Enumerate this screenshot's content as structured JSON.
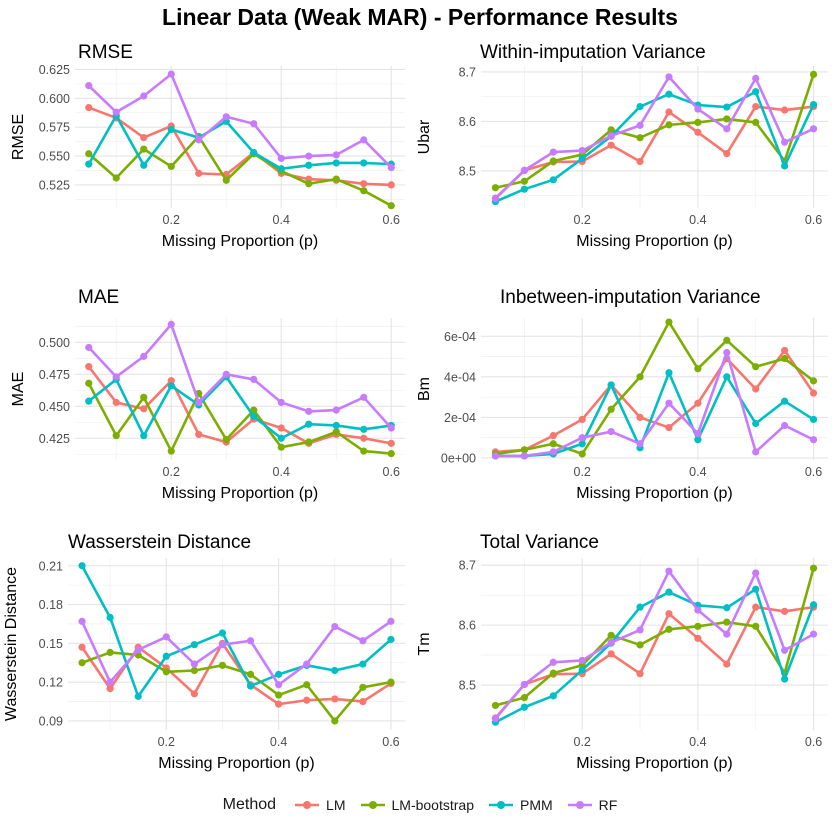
{
  "title": "Linear Data (Weak MAR) - Performance Results",
  "legend": {
    "title": "Method",
    "items": [
      {
        "label": "LM",
        "color": "#F8766D"
      },
      {
        "label": "LM-bootstrap",
        "color": "#7CAE00"
      },
      {
        "label": "PMM",
        "color": "#00BFC4"
      },
      {
        "label": "RF",
        "color": "#C77CFF"
      }
    ]
  },
  "chart_data": [
    {
      "type": "line",
      "title": "RMSE",
      "xlabel": "Missing Proportion (p)",
      "ylabel": "RMSE",
      "xlim": [
        0.025,
        0.625
      ],
      "ylim": [
        0.505,
        0.628
      ],
      "x_ticks": [
        0.2,
        0.4,
        0.6
      ],
      "x_tick_labels": [
        "0.2",
        "0.4",
        "0.6"
      ],
      "y_ticks": [
        0.525,
        0.55,
        0.575,
        0.6,
        0.625
      ],
      "y_tick_labels": [
        "0.525",
        "0.550",
        "0.575",
        "0.600",
        "0.625"
      ],
      "x": [
        0.05,
        0.1,
        0.15,
        0.2,
        0.25,
        0.3,
        0.35,
        0.4,
        0.45,
        0.5,
        0.55,
        0.6
      ],
      "series": [
        {
          "name": "LM",
          "values": [
            0.592,
            0.583,
            0.566,
            0.576,
            0.535,
            0.534,
            0.553,
            0.535,
            0.53,
            0.529,
            0.526,
            0.525
          ]
        },
        {
          "name": "LM-bootstrap",
          "values": [
            0.552,
            0.531,
            0.556,
            0.541,
            0.567,
            0.529,
            0.552,
            0.537,
            0.526,
            0.53,
            0.52,
            0.507
          ]
        },
        {
          "name": "PMM",
          "values": [
            0.543,
            0.585,
            0.542,
            0.573,
            0.566,
            0.58,
            0.553,
            0.539,
            0.542,
            0.544,
            0.544,
            0.543
          ]
        },
        {
          "name": "RF",
          "values": [
            0.611,
            0.588,
            0.602,
            0.621,
            0.564,
            0.584,
            0.578,
            0.548,
            0.55,
            0.551,
            0.564,
            0.54
          ]
        }
      ]
    },
    {
      "type": "line",
      "title": "Within-imputation Variance",
      "xlabel": "Missing Proportion (p)",
      "ylabel": "Ubar",
      "xlim": [
        0.025,
        0.625
      ],
      "ylim": [
        8.425,
        8.712
      ],
      "x_ticks": [
        0.2,
        0.4,
        0.6
      ],
      "x_tick_labels": [
        "0.2",
        "0.4",
        "0.6"
      ],
      "y_ticks": [
        8.5,
        8.6,
        8.7
      ],
      "y_tick_labels": [
        "8.5",
        "8.6",
        "8.7"
      ],
      "x": [
        0.05,
        0.1,
        0.15,
        0.2,
        0.25,
        0.3,
        0.35,
        0.4,
        0.45,
        0.5,
        0.55,
        0.6
      ],
      "series": [
        {
          "name": "LM",
          "values": [
            8.445,
            8.501,
            8.518,
            8.519,
            8.552,
            8.519,
            8.619,
            8.578,
            8.535,
            8.63,
            8.623,
            8.63
          ]
        },
        {
          "name": "LM-bootstrap",
          "values": [
            8.466,
            8.479,
            8.52,
            8.533,
            8.583,
            8.567,
            8.593,
            8.598,
            8.605,
            8.598,
            8.52,
            8.695
          ]
        },
        {
          "name": "PMM",
          "values": [
            8.438,
            8.463,
            8.482,
            8.525,
            8.57,
            8.63,
            8.655,
            8.633,
            8.629,
            8.66,
            8.51,
            8.634
          ]
        },
        {
          "name": "RF",
          "values": [
            8.444,
            8.501,
            8.538,
            8.541,
            8.571,
            8.592,
            8.69,
            8.625,
            8.585,
            8.687,
            8.558,
            8.585
          ]
        }
      ]
    },
    {
      "type": "line",
      "title": "MAE",
      "xlabel": "Missing Proportion (p)",
      "ylabel": "MAE",
      "xlim": [
        0.025,
        0.625
      ],
      "ylim": [
        0.408,
        0.519
      ],
      "x_ticks": [
        0.2,
        0.4,
        0.6
      ],
      "x_tick_labels": [
        "0.2",
        "0.4",
        "0.6"
      ],
      "y_ticks": [
        0.425,
        0.45,
        0.475,
        0.5
      ],
      "y_tick_labels": [
        "0.425",
        "0.450",
        "0.475",
        "0.500"
      ],
      "x": [
        0.05,
        0.1,
        0.15,
        0.2,
        0.25,
        0.3,
        0.35,
        0.4,
        0.45,
        0.5,
        0.55,
        0.6
      ],
      "series": [
        {
          "name": "LM",
          "values": [
            0.481,
            0.453,
            0.448,
            0.47,
            0.428,
            0.422,
            0.44,
            0.433,
            0.421,
            0.428,
            0.425,
            0.421
          ]
        },
        {
          "name": "LM-bootstrap",
          "values": [
            0.468,
            0.427,
            0.457,
            0.415,
            0.46,
            0.424,
            0.447,
            0.418,
            0.422,
            0.43,
            0.415,
            0.413
          ]
        },
        {
          "name": "PMM",
          "values": [
            0.454,
            0.471,
            0.427,
            0.466,
            0.451,
            0.473,
            0.442,
            0.425,
            0.436,
            0.435,
            0.432,
            0.435
          ]
        },
        {
          "name": "RF",
          "values": [
            0.496,
            0.473,
            0.489,
            0.514,
            0.453,
            0.475,
            0.471,
            0.453,
            0.446,
            0.447,
            0.457,
            0.433
          ]
        }
      ]
    },
    {
      "type": "line",
      "title": "Inbetween-imputation Variance",
      "xlabel": "Missing Proportion (p)",
      "ylabel": "Bm",
      "xlim": [
        0.025,
        0.625
      ],
      "ylim": [
        -1e-05,
        0.00069
      ],
      "x_ticks": [
        0.2,
        0.4,
        0.6
      ],
      "x_tick_labels": [
        "0.2",
        "0.4",
        "0.6"
      ],
      "y_ticks": [
        0,
        0.0002,
        0.0004,
        0.0006
      ],
      "y_tick_labels": [
        "0e+00",
        "2e-04",
        "4e-04",
        "6e-04"
      ],
      "x": [
        0.05,
        0.1,
        0.15,
        0.2,
        0.25,
        0.3,
        0.35,
        0.4,
        0.45,
        0.5,
        0.55,
        0.6
      ],
      "series": [
        {
          "name": "LM",
          "values": [
            3e-05,
            4e-05,
            0.00011,
            0.00019,
            0.00036,
            0.0002,
            0.00015,
            0.00027,
            0.00049,
            0.00034,
            0.00053,
            0.00032
          ]
        },
        {
          "name": "LM-bootstrap",
          "values": [
            2e-05,
            4e-05,
            7e-05,
            2e-05,
            0.00024,
            0.0004,
            0.00067,
            0.00044,
            0.00058,
            0.00045,
            0.00049,
            0.00038
          ]
        },
        {
          "name": "PMM",
          "values": [
            1e-05,
            1e-05,
            2e-05,
            7e-05,
            0.00036,
            5e-05,
            0.00042,
            9e-05,
            0.0004,
            0.00017,
            0.00028,
            0.00019
          ]
        },
        {
          "name": "RF",
          "values": [
            1e-05,
            1e-05,
            3e-05,
            0.0001,
            0.00013,
            7e-05,
            0.00027,
            0.00012,
            0.00052,
            3e-05,
            0.00016,
            9e-05
          ]
        }
      ]
    },
    {
      "type": "line",
      "title": "Wasserstein Distance",
      "xlabel": "Missing Proportion (p)",
      "ylabel": "Wasserstein Distance",
      "xlim": [
        0.025,
        0.625
      ],
      "ylim": [
        0.083,
        0.216
      ],
      "x_ticks": [
        0.2,
        0.4,
        0.6
      ],
      "x_tick_labels": [
        "0.2",
        "0.4",
        "0.6"
      ],
      "y_ticks": [
        0.09,
        0.12,
        0.15,
        0.18,
        0.21
      ],
      "y_tick_labels": [
        "0.09",
        "0.12",
        "0.15",
        "0.18",
        "0.21"
      ],
      "x": [
        0.05,
        0.1,
        0.15,
        0.2,
        0.25,
        0.3,
        0.35,
        0.4,
        0.45,
        0.5,
        0.55,
        0.6
      ],
      "series": [
        {
          "name": "LM",
          "values": [
            0.147,
            0.115,
            0.147,
            0.131,
            0.111,
            0.15,
            0.118,
            0.103,
            0.106,
            0.107,
            0.105,
            0.119
          ]
        },
        {
          "name": "LM-bootstrap",
          "values": [
            0.135,
            0.143,
            0.141,
            0.128,
            0.129,
            0.133,
            0.126,
            0.11,
            0.118,
            0.09,
            0.116,
            0.12
          ]
        },
        {
          "name": "PMM",
          "values": [
            0.21,
            0.17,
            0.109,
            0.14,
            0.149,
            0.158,
            0.117,
            0.126,
            0.133,
            0.129,
            0.134,
            0.153
          ]
        },
        {
          "name": "RF",
          "values": [
            0.167,
            0.12,
            0.145,
            0.155,
            0.134,
            0.149,
            0.152,
            0.118,
            0.134,
            0.163,
            0.152,
            0.167
          ]
        }
      ]
    },
    {
      "type": "line",
      "title": "Total Variance",
      "xlabel": "Missing Proportion (p)",
      "ylabel": "Tm",
      "xlim": [
        0.025,
        0.625
      ],
      "ylim": [
        8.425,
        8.712
      ],
      "x_ticks": [
        0.2,
        0.4,
        0.6
      ],
      "x_tick_labels": [
        "0.2",
        "0.4",
        "0.6"
      ],
      "y_ticks": [
        8.5,
        8.6,
        8.7
      ],
      "y_tick_labels": [
        "8.5",
        "8.6",
        "8.7"
      ],
      "x": [
        0.05,
        0.1,
        0.15,
        0.2,
        0.25,
        0.3,
        0.35,
        0.4,
        0.45,
        0.5,
        0.55,
        0.6
      ],
      "series": [
        {
          "name": "LM",
          "values": [
            8.445,
            8.501,
            8.518,
            8.519,
            8.552,
            8.519,
            8.619,
            8.578,
            8.535,
            8.63,
            8.623,
            8.63
          ]
        },
        {
          "name": "LM-bootstrap",
          "values": [
            8.466,
            8.479,
            8.52,
            8.533,
            8.583,
            8.567,
            8.593,
            8.598,
            8.605,
            8.598,
            8.52,
            8.695
          ]
        },
        {
          "name": "PMM",
          "values": [
            8.438,
            8.463,
            8.482,
            8.525,
            8.57,
            8.63,
            8.655,
            8.633,
            8.629,
            8.66,
            8.51,
            8.634
          ]
        },
        {
          "name": "RF",
          "values": [
            8.444,
            8.501,
            8.538,
            8.541,
            8.571,
            8.592,
            8.69,
            8.625,
            8.585,
            8.687,
            8.558,
            8.585
          ]
        }
      ]
    }
  ]
}
